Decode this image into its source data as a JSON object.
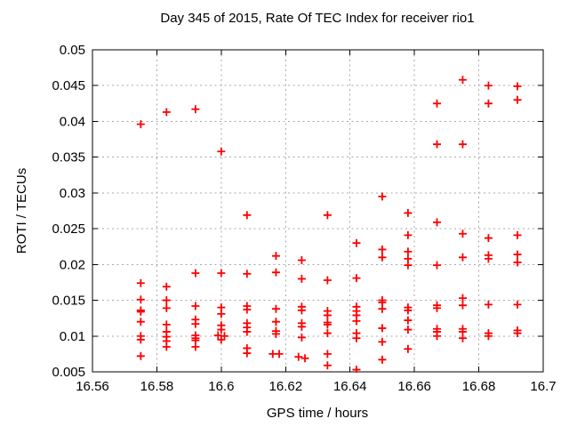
{
  "chart_data": {
    "type": "scatter",
    "title": "Day 345 of 2015, Rate Of TEC Index for receiver rio1",
    "xlabel": "GPS time / hours",
    "ylabel": "ROTI / TECUs",
    "xlim": [
      16.56,
      16.7
    ],
    "ylim": [
      0.005,
      0.05
    ],
    "grid": true,
    "legend_position": "none",
    "marker_shape": "plus",
    "marker_color": "#ff0000",
    "xtick_values": [
      16.56,
      16.58,
      16.6,
      16.62,
      16.64,
      16.66,
      16.68,
      16.7
    ],
    "xtick_labels": [
      "16.56",
      "16.58",
      "16.6",
      "16.62",
      "16.64",
      "16.66",
      "16.68",
      "16.7"
    ],
    "ytick_values": [
      0.005,
      0.01,
      0.015,
      0.02,
      0.025,
      0.03,
      0.035,
      0.04,
      0.045,
      0.05
    ],
    "ytick_labels": [
      "0.005",
      "0.01",
      "0.015",
      "0.02",
      "0.025",
      "0.03",
      "0.035",
      "0.04",
      "0.045",
      "0.05"
    ],
    "series": [
      {
        "name": "ROTI",
        "points": [
          [
            16.575,
            0.0396
          ],
          [
            16.575,
            0.0174
          ],
          [
            16.575,
            0.0151
          ],
          [
            16.575,
            0.0136
          ],
          [
            16.575,
            0.0134
          ],
          [
            16.575,
            0.012
          ],
          [
            16.575,
            0.01
          ],
          [
            16.575,
            0.0095
          ],
          [
            16.575,
            0.0072
          ],
          [
            16.583,
            0.0413
          ],
          [
            16.583,
            0.0169
          ],
          [
            16.583,
            0.015
          ],
          [
            16.583,
            0.0139
          ],
          [
            16.583,
            0.0116
          ],
          [
            16.583,
            0.0106
          ],
          [
            16.583,
            0.0099
          ],
          [
            16.583,
            0.0093
          ],
          [
            16.583,
            0.0085
          ],
          [
            16.592,
            0.0417
          ],
          [
            16.592,
            0.0188
          ],
          [
            16.592,
            0.0142
          ],
          [
            16.592,
            0.0123
          ],
          [
            16.592,
            0.0117
          ],
          [
            16.592,
            0.0101
          ],
          [
            16.592,
            0.0097
          ],
          [
            16.592,
            0.0094
          ],
          [
            16.592,
            0.0085
          ],
          [
            16.6,
            0.0358
          ],
          [
            16.6,
            0.0188
          ],
          [
            16.6,
            0.014
          ],
          [
            16.6,
            0.0131
          ],
          [
            16.6,
            0.0115
          ],
          [
            16.6,
            0.0109
          ],
          [
            16.599,
            0.0101
          ],
          [
            16.601,
            0.01
          ],
          [
            16.6,
            0.0095
          ],
          [
            16.608,
            0.0269
          ],
          [
            16.608,
            0.0187
          ],
          [
            16.608,
            0.0142
          ],
          [
            16.608,
            0.0137
          ],
          [
            16.608,
            0.0118
          ],
          [
            16.608,
            0.0112
          ],
          [
            16.608,
            0.0106
          ],
          [
            16.608,
            0.0083
          ],
          [
            16.608,
            0.0076
          ],
          [
            16.617,
            0.0212
          ],
          [
            16.617,
            0.0189
          ],
          [
            16.617,
            0.0138
          ],
          [
            16.617,
            0.012
          ],
          [
            16.617,
            0.0107
          ],
          [
            16.617,
            0.0103
          ],
          [
            16.616,
            0.0075
          ],
          [
            16.618,
            0.0075
          ],
          [
            16.625,
            0.0206
          ],
          [
            16.625,
            0.018
          ],
          [
            16.625,
            0.0141
          ],
          [
            16.625,
            0.0136
          ],
          [
            16.625,
            0.0118
          ],
          [
            16.625,
            0.0113
          ],
          [
            16.625,
            0.0098
          ],
          [
            16.624,
            0.0071
          ],
          [
            16.626,
            0.0069
          ],
          [
            16.633,
            0.0269
          ],
          [
            16.633,
            0.0178
          ],
          [
            16.633,
            0.0135
          ],
          [
            16.633,
            0.0129
          ],
          [
            16.633,
            0.0119
          ],
          [
            16.633,
            0.0116
          ],
          [
            16.633,
            0.0104
          ],
          [
            16.633,
            0.0075
          ],
          [
            16.633,
            0.0059
          ],
          [
            16.642,
            0.023
          ],
          [
            16.642,
            0.0181
          ],
          [
            16.642,
            0.0141
          ],
          [
            16.642,
            0.0135
          ],
          [
            16.642,
            0.0129
          ],
          [
            16.642,
            0.0121
          ],
          [
            16.642,
            0.0104
          ],
          [
            16.642,
            0.0097
          ],
          [
            16.642,
            0.0053
          ],
          [
            16.65,
            0.0295
          ],
          [
            16.65,
            0.0221
          ],
          [
            16.65,
            0.021
          ],
          [
            16.65,
            0.015
          ],
          [
            16.65,
            0.0147
          ],
          [
            16.65,
            0.0138
          ],
          [
            16.65,
            0.0111
          ],
          [
            16.65,
            0.0092
          ],
          [
            16.65,
            0.0067
          ],
          [
            16.658,
            0.0272
          ],
          [
            16.658,
            0.0241
          ],
          [
            16.658,
            0.0218
          ],
          [
            16.658,
            0.0208
          ],
          [
            16.658,
            0.0199
          ],
          [
            16.658,
            0.014
          ],
          [
            16.658,
            0.0136
          ],
          [
            16.658,
            0.0122
          ],
          [
            16.658,
            0.0109
          ],
          [
            16.658,
            0.0082
          ],
          [
            16.667,
            0.0425
          ],
          [
            16.667,
            0.0368
          ],
          [
            16.667,
            0.0259
          ],
          [
            16.667,
            0.0199
          ],
          [
            16.667,
            0.0143
          ],
          [
            16.667,
            0.0139
          ],
          [
            16.667,
            0.011
          ],
          [
            16.667,
            0.0106
          ],
          [
            16.667,
            0.01
          ],
          [
            16.675,
            0.0458
          ],
          [
            16.675,
            0.0368
          ],
          [
            16.675,
            0.0243
          ],
          [
            16.675,
            0.021
          ],
          [
            16.675,
            0.0153
          ],
          [
            16.675,
            0.0143
          ],
          [
            16.675,
            0.011
          ],
          [
            16.675,
            0.0106
          ],
          [
            16.675,
            0.0097
          ],
          [
            16.683,
            0.045
          ],
          [
            16.683,
            0.0425
          ],
          [
            16.683,
            0.0237
          ],
          [
            16.683,
            0.0213
          ],
          [
            16.683,
            0.0208
          ],
          [
            16.683,
            0.0144
          ],
          [
            16.683,
            0.0104
          ],
          [
            16.683,
            0.01
          ],
          [
            16.692,
            0.0449
          ],
          [
            16.692,
            0.043
          ],
          [
            16.692,
            0.0241
          ],
          [
            16.692,
            0.0214
          ],
          [
            16.692,
            0.0203
          ],
          [
            16.692,
            0.0144
          ],
          [
            16.692,
            0.0108
          ],
          [
            16.692,
            0.0104
          ]
        ]
      }
    ]
  }
}
